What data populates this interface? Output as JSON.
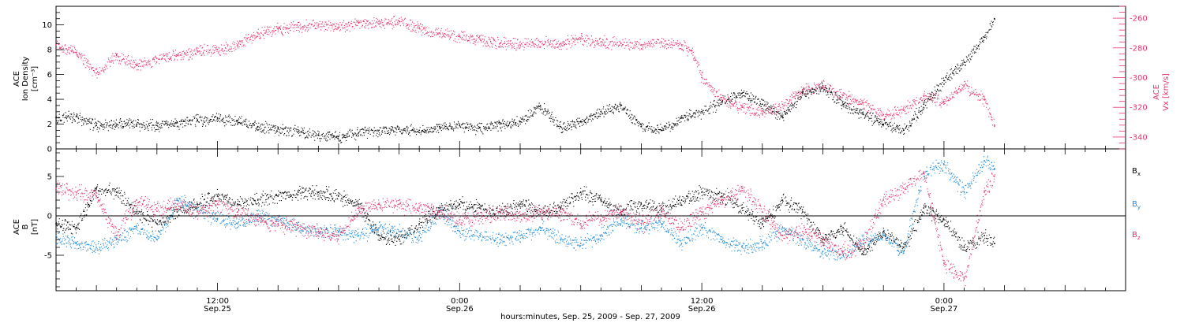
{
  "figure": {
    "xlabel": "hours:minutes, Sep. 25, 2009 - Sep. 27, 2009",
    "xticks": [
      {
        "t": 12,
        "top": "12:00",
        "bottom": "Sep.25"
      },
      {
        "t": 24,
        "top": "0:00",
        "bottom": "Sep.26"
      },
      {
        "t": 36,
        "top": "12:00",
        "bottom": "Sep.26"
      },
      {
        "t": 48,
        "top": "0:00",
        "bottom": "Sep.27"
      }
    ]
  },
  "colors": {
    "black": "#000000",
    "red": "#e8336b",
    "blue": "#1f8ad8"
  },
  "chart_data": [
    {
      "type": "scatter",
      "title": "",
      "xlim": [
        4,
        57
      ],
      "x_unit": "hours since 2009-09-25 00:00",
      "ylabel_left_lines": [
        "ACE",
        "Ion Density",
        "[cm⁻³]"
      ],
      "ylim_left": [
        0,
        11.5
      ],
      "yticks_left": [
        0,
        2,
        4,
        6,
        8,
        10
      ],
      "ylabel_right_lines": [
        "ACE",
        "Vx [km/s]"
      ],
      "ylim_right": [
        -348,
        -252
      ],
      "yticks_right": [
        -340,
        -320,
        -300,
        -280,
        -260
      ],
      "series": [
        {
          "name": "Ion Density",
          "axis": "left",
          "color": "#000000",
          "x": [
            4,
            5,
            6,
            7,
            8,
            9,
            10,
            11,
            12,
            13,
            14,
            15,
            16,
            17,
            18,
            19,
            20,
            21,
            22,
            23,
            24,
            25,
            26,
            27,
            28,
            29,
            30,
            31,
            32,
            33,
            34,
            35,
            36,
            37,
            38,
            39,
            40,
            41,
            42,
            43,
            44,
            45,
            46,
            47,
            48,
            49,
            50,
            50.5
          ],
          "values": [
            2.5,
            2.6,
            1.9,
            2.0,
            2.0,
            1.9,
            2.1,
            2.3,
            2.5,
            2.3,
            1.8,
            1.6,
            1.4,
            1.1,
            1.0,
            1.3,
            1.5,
            1.6,
            1.5,
            1.8,
            1.9,
            1.7,
            2.0,
            2.2,
            3.5,
            1.8,
            2.2,
            3.0,
            3.5,
            1.8,
            1.5,
            2.5,
            3.0,
            3.8,
            4.5,
            3.6,
            2.6,
            4.5,
            4.9,
            3.6,
            2.8,
            2.0,
            1.5,
            3.6,
            5.5,
            7.0,
            9.0,
            10.5
          ],
          "scatter": 0.4
        },
        {
          "name": "Vx",
          "axis": "right",
          "color": "#e8336b",
          "x": [
            4,
            5,
            6,
            7,
            8,
            9,
            10,
            11,
            12,
            13,
            14,
            15,
            16,
            17,
            18,
            19,
            20,
            21,
            22,
            23,
            24,
            25,
            26,
            27,
            28,
            29,
            30,
            31,
            32,
            33,
            34,
            35,
            35.5,
            36,
            37,
            38,
            39,
            40,
            41,
            42,
            43,
            44,
            45,
            46,
            47,
            48,
            49,
            50,
            50.5
          ],
          "values": [
            -278,
            -283,
            -297,
            -285,
            -292,
            -287,
            -285,
            -282,
            -281,
            -278,
            -270,
            -267,
            -266,
            -264,
            -266,
            -263,
            -264,
            -262,
            -267,
            -270,
            -272,
            -274,
            -277,
            -278,
            -276,
            -277,
            -274,
            -276,
            -277,
            -278,
            -276,
            -278,
            -282,
            -300,
            -315,
            -320,
            -324,
            -318,
            -308,
            -306,
            -312,
            -317,
            -325,
            -322,
            -312,
            -316,
            -305,
            -315,
            -332
          ],
          "scatter": 3.5
        }
      ]
    },
    {
      "type": "scatter",
      "title": "",
      "xlim": [
        4,
        57
      ],
      "x_unit": "hours since 2009-09-25 00:00",
      "ylabel_lines": [
        "ACE",
        "B",
        "[nT]"
      ],
      "ylim": [
        -9.5,
        8.5
      ],
      "yticks": [
        -5,
        0,
        5
      ],
      "zero_line": true,
      "series": [
        {
          "name": "Bx",
          "color": "#000000",
          "x": [
            4,
            5,
            6,
            7,
            8,
            9,
            10,
            11,
            12,
            13,
            14,
            15,
            16,
            17,
            18,
            19,
            20,
            21,
            22,
            23,
            24,
            25,
            26,
            27,
            28,
            29,
            30,
            31,
            32,
            33,
            34,
            35,
            36,
            37,
            38,
            39,
            40,
            41,
            42,
            43,
            44,
            45,
            46,
            47,
            48,
            49,
            50,
            50.5
          ],
          "values": [
            -1.0,
            -1.5,
            3.5,
            3.0,
            0.5,
            -1.0,
            0.5,
            1.5,
            2.5,
            1.5,
            2.0,
            2.5,
            3.0,
            3.0,
            2.5,
            1.5,
            -2.5,
            -3.0,
            -1.0,
            1.0,
            1.5,
            1.0,
            0.5,
            1.5,
            0.5,
            1.0,
            3.0,
            2.0,
            0.5,
            1.5,
            1.0,
            2.0,
            3.0,
            2.5,
            1.0,
            -1.0,
            2.0,
            0.5,
            -3.0,
            -1.5,
            -4.5,
            -2.0,
            -4.0,
            1.0,
            -0.5,
            -4.0,
            -2.5,
            -3.5
          ],
          "scatter": 0.8
        },
        {
          "name": "By",
          "color": "#1f8ad8",
          "x": [
            4,
            5,
            6,
            7,
            8,
            9,
            10,
            11,
            12,
            13,
            14,
            15,
            16,
            17,
            18,
            19,
            20,
            21,
            22,
            23,
            24,
            25,
            26,
            27,
            28,
            29,
            30,
            31,
            32,
            33,
            34,
            35,
            36,
            37,
            38,
            39,
            40,
            41,
            42,
            43,
            44,
            45,
            46,
            47,
            48,
            49,
            50,
            50.5
          ],
          "values": [
            -2.5,
            -3.5,
            -4.0,
            -3.0,
            -1.5,
            -3.0,
            2.0,
            1.0,
            -0.5,
            -1.0,
            0.0,
            -0.5,
            -1.5,
            -2.0,
            -2.0,
            -2.5,
            -1.5,
            -2.0,
            -2.5,
            0.5,
            -2.0,
            -2.5,
            -3.0,
            -2.5,
            -1.5,
            -3.0,
            -3.5,
            -2.5,
            -0.5,
            -1.5,
            -1.0,
            -3.5,
            -1.5,
            -3.0,
            -4.0,
            -3.5,
            -1.5,
            -3.0,
            -4.5,
            -5.0,
            -3.0,
            -2.5,
            -4.5,
            5.5,
            6.5,
            3.0,
            7.0,
            6.0
          ],
          "scatter": 0.8
        },
        {
          "name": "Bz",
          "color": "#e8336b",
          "x": [
            4,
            5,
            6,
            7,
            8,
            9,
            10,
            11,
            12,
            13,
            14,
            15,
            16,
            17,
            18,
            19,
            20,
            21,
            22,
            23,
            24,
            25,
            26,
            27,
            28,
            29,
            30,
            31,
            32,
            33,
            34,
            35,
            36,
            37,
            38,
            39,
            40,
            41,
            42,
            43,
            44,
            45,
            46,
            47,
            48,
            49,
            50,
            50.5
          ],
          "values": [
            3.5,
            3.0,
            2.5,
            -2.5,
            2.0,
            1.0,
            1.5,
            0.5,
            1.5,
            0.5,
            -0.5,
            -1.0,
            -1.5,
            -2.0,
            -2.5,
            1.0,
            1.5,
            1.5,
            1.0,
            0.5,
            -0.5,
            0.0,
            0.5,
            0.0,
            0.5,
            0.5,
            -1.0,
            0.0,
            0.5,
            -1.0,
            0.5,
            -1.5,
            0.5,
            2.0,
            3.5,
            0.5,
            -2.5,
            -2.0,
            -3.0,
            -4.5,
            -3.5,
            2.0,
            3.5,
            5.5,
            -6.0,
            -8.0,
            3.0,
            5.0
          ],
          "scatter": 0.9
        }
      ],
      "legend_position": "right",
      "legend": [
        {
          "base": "B",
          "sub": "x",
          "color": "#000000"
        },
        {
          "base": "B",
          "sub": "y",
          "color": "#1f8ad8"
        },
        {
          "base": "B",
          "sub": "z",
          "color": "#e8336b"
        }
      ]
    }
  ]
}
